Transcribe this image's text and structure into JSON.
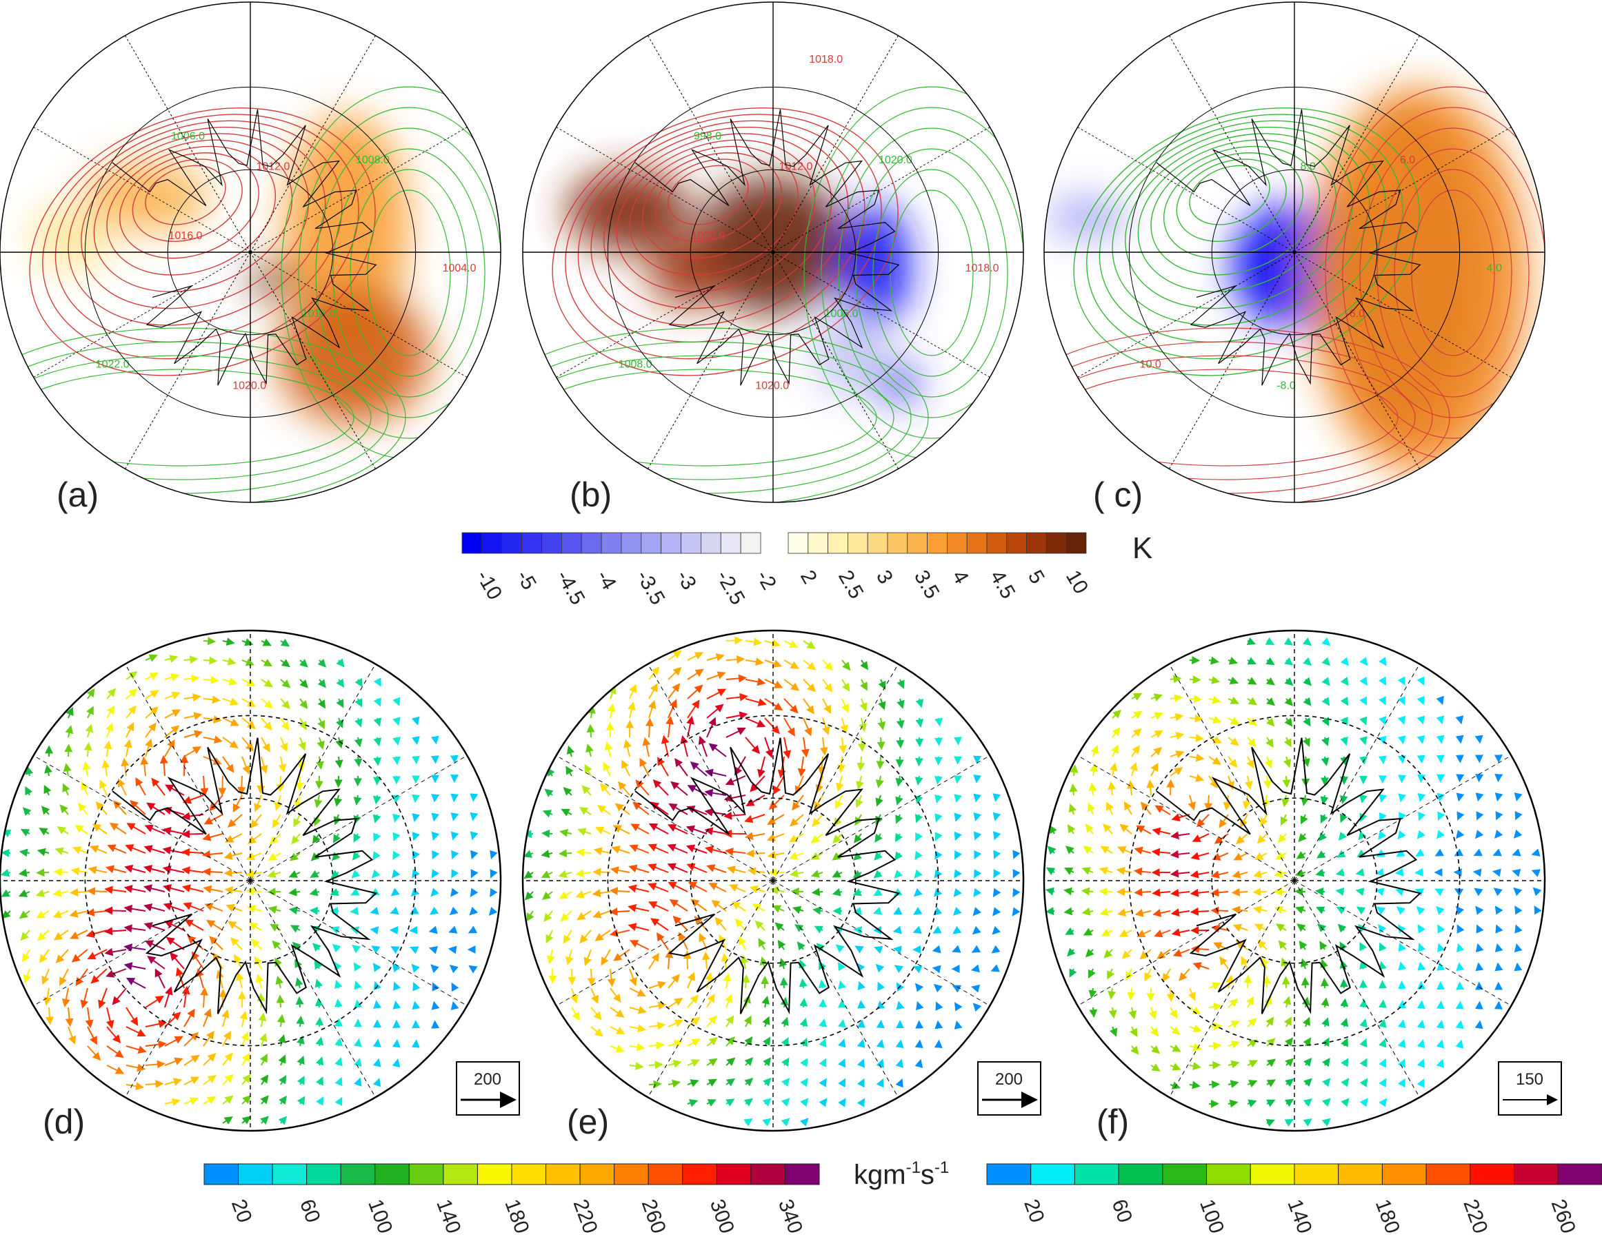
{
  "panels": [
    {
      "id": "a",
      "label": "(a)",
      "kind": "temperature"
    },
    {
      "id": "b",
      "label": "(b)",
      "kind": "temperature"
    },
    {
      "id": "c",
      "label": "( c)",
      "kind": "temperature"
    },
    {
      "id": "d",
      "label": "(d)",
      "kind": "vector",
      "reference_vector": "200"
    },
    {
      "id": "e",
      "label": "(e)",
      "kind": "vector",
      "reference_vector": "200"
    },
    {
      "id": "f",
      "label": "(f)",
      "kind": "vector",
      "reference_vector": "150"
    }
  ],
  "contour_labels": {
    "a": [
      "1012.0",
      "1008.0",
      "1004.0",
      "1018.0",
      "1020.0",
      "1022.0",
      "1016.0",
      "1006.0"
    ],
    "b": [
      "1012.0",
      "1020.0",
      "1018.0",
      "1006.0",
      "1020.0",
      "1008.0",
      "1000.0",
      "998.0",
      "1018.0"
    ],
    "c": [
      "8.0",
      "6.0",
      "4.0",
      "-6.0",
      "-8.0",
      "10.0"
    ]
  },
  "temperature_colorbar": {
    "unit": "K",
    "ticks": [
      "-10",
      "-5",
      "-4.5",
      "-4",
      "-3.5",
      "-3",
      "-2.5",
      "-2",
      "2",
      "2.5",
      "3",
      "3.5",
      "4",
      "4.5",
      "5",
      "10"
    ],
    "negative_colors": [
      "#0000f5",
      "#1414f3",
      "#2626f2",
      "#3232f0",
      "#4242ee",
      "#5656ee",
      "#6a6aef",
      "#8080f1",
      "#9393f3",
      "#a4a4f5",
      "#b3b3f5",
      "#c4c4f5",
      "#d6d6f2",
      "#e6e6f4",
      "#f2f2f2"
    ],
    "positive_colors": [
      "#fffee6",
      "#fff8cc",
      "#fff1b0",
      "#fee69a",
      "#fdd981",
      "#fcc664",
      "#fbb34d",
      "#fa9e35",
      "#f38a25",
      "#e57318",
      "#d25c0d",
      "#b9470a",
      "#9c3508",
      "#7f2a08",
      "#662208"
    ]
  },
  "vector_colorbar_left": {
    "unit_base": "kgm",
    "unit_exp1": "-1",
    "unit_s": "s",
    "unit_exp2": "-1",
    "ticks": [
      "20",
      "60",
      "100",
      "140",
      "180",
      "220",
      "260",
      "300",
      "340"
    ],
    "colors": [
      "#0090ff",
      "#00d0f8",
      "#10e8d8",
      "#00d898",
      "#18bb48",
      "#20b020",
      "#68cc10",
      "#b4e810",
      "#f8f800",
      "#ffde00",
      "#ffc000",
      "#ffa800",
      "#ff8000",
      "#ff5000",
      "#ff2000",
      "#e00020",
      "#b00040",
      "#800070"
    ]
  },
  "vector_colorbar_right": {
    "ticks": [
      "20",
      "60",
      "100",
      "140",
      "180",
      "220",
      "260"
    ],
    "colors": [
      "#0090ff",
      "#00eefa",
      "#00e0a8",
      "#00c050",
      "#28b818",
      "#90dc00",
      "#eef800",
      "#ffd800",
      "#ffbb00",
      "#ff9000",
      "#ff5000",
      "#ff1000",
      "#c80030",
      "#800070"
    ]
  },
  "chart_data": {
    "type": "map",
    "projection": "north-polar-stereographic",
    "temperature_levels_K": [
      -10,
      -5,
      -4.5,
      -4,
      -3.5,
      -3,
      -2.5,
      -2,
      2,
      2.5,
      3,
      3.5,
      4,
      4.5,
      5,
      10
    ],
    "flux_levels_left": [
      20,
      60,
      100,
      140,
      180,
      220,
      260,
      300,
      340
    ],
    "flux_levels_right": [
      20,
      60,
      100,
      140,
      180,
      220,
      260
    ],
    "reference_vectors": {
      "d": 200,
      "e": 200,
      "f": 150
    }
  }
}
